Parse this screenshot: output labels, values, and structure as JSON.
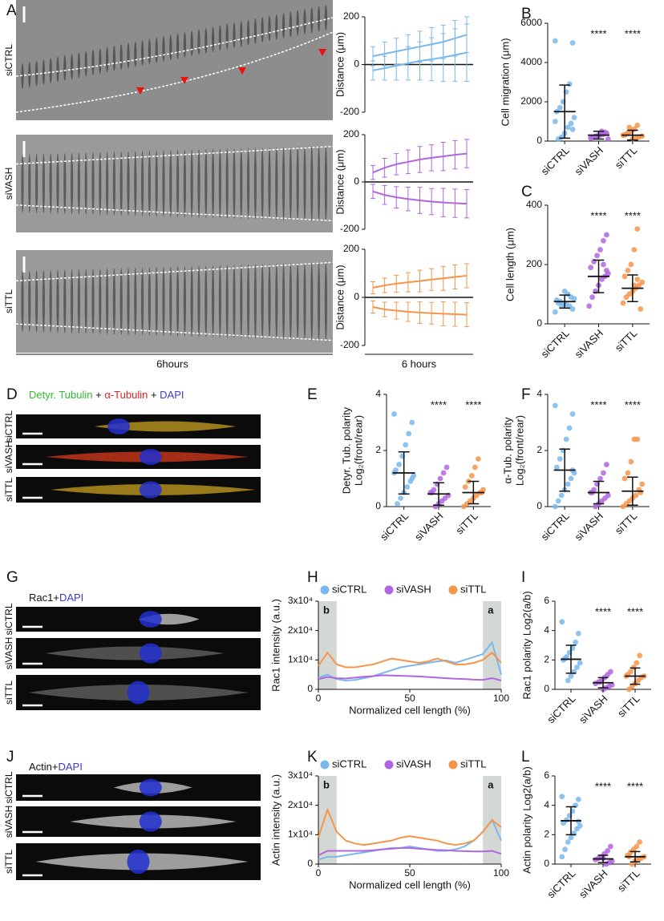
{
  "images": [
    {
      "panel": "A",
      "rows": [
        "siCTRL",
        "siVASH",
        "siTTL"
      ],
      "xlabel": "6hours"
    },
    {
      "panel": "D",
      "legend": [
        "Detyr. Tubulin",
        " + ",
        "α-Tubulin",
        " + ",
        "DAPI"
      ],
      "legend_colors": [
        "#2bbf2b",
        "#111111",
        "#e02020",
        "#111111",
        "#3a3ad0"
      ],
      "rows": [
        "siCTRL",
        "siVASH",
        "siTTL"
      ]
    },
    {
      "panel": "G",
      "legend": [
        "Rac1",
        "+",
        "DAPI"
      ],
      "legend_colors": [
        "#111111",
        "#111111",
        "#3a3ad0"
      ],
      "rows": [
        "siCTRL",
        "siVASH",
        "siTTL"
      ]
    },
    {
      "panel": "J",
      "legend": [
        "Actin",
        "+",
        "DAPI"
      ],
      "legend_colors": [
        "#111111",
        "#111111",
        "#3a3ad0"
      ],
      "rows": [
        "siCTRL",
        "siVASH",
        "siTTL"
      ]
    }
  ],
  "chart_data": [
    {
      "type": "line",
      "ylabel": "Distance (μm)",
      "ylim": [
        -200,
        200
      ],
      "yticks": [
        -200,
        0,
        200
      ],
      "zero_line": true,
      "series": [
        {
          "color": "#7ab8ec",
          "values": [
            35,
            45,
            55,
            65,
            75,
            85,
            95,
            110,
            125
          ],
          "errors": [
            40,
            50,
            55,
            60,
            65,
            70,
            70,
            75,
            75
          ]
        },
        {
          "color": "#7ab8ec",
          "values": [
            -25,
            -15,
            -5,
            5,
            15,
            22,
            30,
            40,
            50
          ],
          "errors": [
            40,
            50,
            60,
            70,
            80,
            90,
            100,
            110,
            120
          ]
        }
      ]
    },
    {
      "type": "line",
      "ylabel": "Distance (μm)",
      "ylim": [
        -200,
        200
      ],
      "yticks": [
        -200,
        0,
        200
      ],
      "zero_line": true,
      "series": [
        {
          "color": "#b066e0",
          "values": [
            40,
            60,
            75,
            85,
            95,
            102,
            108,
            115,
            120
          ],
          "errors": [
            30,
            40,
            45,
            50,
            55,
            55,
            60,
            60,
            60
          ]
        },
        {
          "color": "#b066e0",
          "values": [
            -40,
            -55,
            -65,
            -72,
            -78,
            -83,
            -87,
            -90,
            -92
          ],
          "errors": [
            30,
            40,
            45,
            50,
            55,
            55,
            60,
            60,
            60
          ]
        }
      ]
    },
    {
      "type": "line",
      "ylabel": "Distance (μm)",
      "xlabel": "6 hours",
      "ylim": [
        -200,
        200
      ],
      "yticks": [
        -200,
        0,
        200
      ],
      "zero_line": true,
      "series": [
        {
          "color": "#f5954a",
          "values": [
            40,
            50,
            57,
            63,
            68,
            74,
            79,
            85,
            90
          ],
          "errors": [
            25,
            30,
            35,
            40,
            45,
            45,
            50,
            50,
            50
          ]
        },
        {
          "color": "#f5954a",
          "values": [
            -40,
            -50,
            -55,
            -60,
            -63,
            -66,
            -68,
            -70,
            -72
          ],
          "errors": [
            25,
            30,
            35,
            40,
            45,
            45,
            50,
            50,
            50
          ]
        }
      ]
    },
    {
      "type": "dot",
      "panel": "B",
      "ylabel": "Cell migration (μm)",
      "categories": [
        "siCTRL",
        "siVASH",
        "siTTL"
      ],
      "colors": [
        "#7ab8ec",
        "#b066e0",
        "#f5954a"
      ],
      "ylim": [
        0,
        6000
      ],
      "yticks": [
        0,
        2000,
        4000,
        6000
      ],
      "annotations": [
        null,
        "****",
        "****"
      ],
      "values": [
        [
          5100,
          5000,
          2900,
          2500,
          2000,
          1700,
          1500,
          1200,
          900,
          700,
          400,
          200,
          100,
          1000,
          600
        ],
        [
          400,
          350,
          300,
          250,
          200,
          150,
          100,
          450,
          500,
          300,
          250,
          200
        ],
        [
          800,
          600,
          500,
          400,
          300,
          250,
          200,
          150,
          100,
          700,
          350,
          300
        ]
      ],
      "means": [
        1500,
        300,
        300
      ],
      "sds": [
        1350,
        200,
        250
      ]
    },
    {
      "type": "dot",
      "panel": "C",
      "ylabel": "Cell length (μm)",
      "categories": [
        "siCTRL",
        "siVASH",
        "siTTL"
      ],
      "colors": [
        "#7ab8ec",
        "#b066e0",
        "#f5954a"
      ],
      "ylim": [
        0,
        400
      ],
      "yticks": [
        0,
        200,
        400
      ],
      "annotations": [
        null,
        "****",
        "****"
      ],
      "values": [
        [
          40,
          50,
          60,
          65,
          70,
          75,
          80,
          85,
          90,
          100,
          110,
          60,
          70
        ],
        [
          300,
          280,
          250,
          230,
          210,
          190,
          170,
          160,
          150,
          130,
          110,
          90,
          60,
          180,
          200
        ],
        [
          320,
          250,
          200,
          180,
          160,
          140,
          130,
          120,
          110,
          100,
          90,
          70,
          50,
          150,
          130
        ]
      ],
      "means": [
        75,
        160,
        120
      ],
      "sds": [
        22,
        55,
        45
      ]
    },
    {
      "type": "dot",
      "panel": "E",
      "ylabel": [
        "Detyr. Tub. polarity",
        "Log₂(front/rear)"
      ],
      "categories": [
        "siCTRL",
        "siVASH",
        "siTTL"
      ],
      "colors": [
        "#7ab8ec",
        "#b066e0",
        "#f5954a"
      ],
      "ylim": [
        0,
        4
      ],
      "yticks": [
        0,
        2,
        4
      ],
      "annotations": [
        null,
        "****",
        "****"
      ],
      "values": [
        [
          3.3,
          3.0,
          2.6,
          2.2,
          1.8,
          1.5,
          1.3,
          1.1,
          0.9,
          0.7,
          0.5,
          0.3,
          0.1,
          1.2,
          1.0
        ],
        [
          1.4,
          1.2,
          1.0,
          0.8,
          0.6,
          0.5,
          0.4,
          0.3,
          0.2,
          0.1,
          0.0,
          0.5
        ],
        [
          1.7,
          1.4,
          1.1,
          0.9,
          0.7,
          0.6,
          0.5,
          0.4,
          0.3,
          0.2,
          0.1,
          0.0,
          0.5
        ]
      ],
      "means": [
        1.2,
        0.45,
        0.5
      ],
      "sds": [
        0.75,
        0.4,
        0.4
      ]
    },
    {
      "type": "dot",
      "panel": "F",
      "ylabel": [
        "α-Tub. polarity",
        "Log₂(front/rear)"
      ],
      "categories": [
        "siCTRL",
        "siVASH",
        "siTTL"
      ],
      "colors": [
        "#7ab8ec",
        "#b066e0",
        "#f5954a"
      ],
      "ylim": [
        0,
        4
      ],
      "yticks": [
        0,
        2,
        4
      ],
      "annotations": [
        null,
        "****",
        "****"
      ],
      "values": [
        [
          3.6,
          3.3,
          2.8,
          2.4,
          2.0,
          1.7,
          1.4,
          1.2,
          1.0,
          0.8,
          0.6,
          0.4,
          0.2,
          0.0,
          1.3
        ],
        [
          1.5,
          1.2,
          1.0,
          0.8,
          0.6,
          0.5,
          0.4,
          0.3,
          0.2,
          0.1,
          0.0,
          0.5
        ],
        [
          2.4,
          2.4,
          1.6,
          1.2,
          1.0,
          0.8,
          0.6,
          0.4,
          0.3,
          0.2,
          0.1,
          0.0,
          0.5
        ]
      ],
      "means": [
        1.3,
        0.5,
        0.55
      ],
      "sds": [
        0.75,
        0.4,
        0.5
      ]
    },
    {
      "type": "line",
      "panel": "H",
      "ylabel": "Rac1 intensity (a.u.)",
      "xlabel": "Normalized cell length (%)",
      "x": [
        0,
        5,
        10,
        15,
        20,
        25,
        30,
        35,
        40,
        45,
        50,
        55,
        60,
        65,
        70,
        75,
        80,
        85,
        90,
        95,
        100
      ],
      "xlim": [
        0,
        100
      ],
      "xticks": [
        0,
        50,
        100
      ],
      "ylim": [
        0,
        30000
      ],
      "yticks": [
        0,
        {
          "value": 10000,
          "label": "1x10⁴"
        },
        {
          "value": 20000,
          "label": "2x10⁴"
        },
        {
          "value": 30000,
          "label": "3x10⁴"
        }
      ],
      "regions": [
        {
          "label": "b",
          "x": [
            0,
            10
          ]
        },
        {
          "label": "a",
          "x": [
            90,
            100
          ]
        }
      ],
      "series": [
        {
          "name": "siCTRL",
          "color": "#7ab8ec",
          "values": [
            4000,
            5000,
            3500,
            3000,
            3200,
            3800,
            4500,
            5500,
            6500,
            7500,
            8000,
            8500,
            9000,
            9500,
            9800,
            9000,
            10000,
            11000,
            12000,
            16000,
            5000
          ]
        },
        {
          "name": "siVASH",
          "color": "#b066e0",
          "values": [
            3500,
            4200,
            3800,
            3700,
            4000,
            4300,
            4500,
            4800,
            4700,
            4600,
            4500,
            4400,
            4200,
            4000,
            3800,
            3600,
            3500,
            3300,
            3200,
            3800,
            3000
          ]
        },
        {
          "name": "siTTL",
          "color": "#f5954a",
          "values": [
            8000,
            12500,
            8500,
            7500,
            7500,
            8000,
            8500,
            9500,
            10500,
            10000,
            9500,
            9000,
            9500,
            10500,
            9500,
            8500,
            8500,
            9000,
            10000,
            12500,
            9000
          ]
        }
      ]
    },
    {
      "type": "dot",
      "panel": "I",
      "ylabel": "Rac1 polarity Log2(a/b)",
      "categories": [
        "siCTRL",
        "siVASH",
        "siTTL"
      ],
      "colors": [
        "#7ab8ec",
        "#b066e0",
        "#f5954a"
      ],
      "ylim": [
        0,
        6
      ],
      "yticks": [
        0,
        2,
        4,
        6
      ],
      "annotations": [
        null,
        "****",
        "****"
      ],
      "values": [
        [
          4.6,
          3.8,
          3.2,
          2.8,
          2.5,
          2.2,
          2.0,
          1.8,
          1.5,
          1.2,
          0.9,
          0.6,
          2.1
        ],
        [
          1.2,
          1.0,
          0.8,
          0.6,
          0.5,
          0.4,
          0.3,
          0.2,
          0.1,
          0.0,
          0.5
        ],
        [
          2.3,
          1.8,
          1.5,
          1.2,
          1.0,
          0.9,
          0.8,
          0.6,
          0.4,
          0.2,
          0.0,
          0.9
        ]
      ],
      "means": [
        2.05,
        0.45,
        0.9
      ],
      "sds": [
        0.95,
        0.35,
        0.55
      ]
    },
    {
      "type": "line",
      "panel": "K",
      "ylabel": "Actin intensity (a.u.)",
      "xlabel": "Normalized cell length (%)",
      "x": [
        0,
        5,
        10,
        15,
        20,
        25,
        30,
        35,
        40,
        45,
        50,
        55,
        60,
        65,
        70,
        75,
        80,
        85,
        90,
        95,
        100
      ],
      "xlim": [
        0,
        100
      ],
      "xticks": [
        0,
        50,
        100
      ],
      "ylim": [
        0,
        30000
      ],
      "yticks": [
        0,
        {
          "value": 10000,
          "label": "1x10⁴"
        },
        {
          "value": 20000,
          "label": "2x10⁴"
        },
        {
          "value": 30000,
          "label": "3x10⁴"
        }
      ],
      "regions": [
        {
          "label": "b",
          "x": [
            0,
            10
          ]
        },
        {
          "label": "a",
          "x": [
            90,
            100
          ]
        }
      ],
      "series": [
        {
          "name": "siCTRL",
          "color": "#7ab8ec",
          "values": [
            1500,
            2500,
            2500,
            3000,
            3500,
            4000,
            4500,
            5000,
            5500,
            5500,
            6000,
            5500,
            5000,
            4500,
            4500,
            5000,
            6000,
            8000,
            11000,
            15000,
            8000
          ]
        },
        {
          "name": "siVASH",
          "color": "#b066e0",
          "values": [
            3000,
            4500,
            4500,
            4500,
            4500,
            4500,
            4700,
            5000,
            5200,
            5500,
            5500,
            5200,
            5000,
            4800,
            4700,
            4500,
            4400,
            4300,
            4300,
            4500,
            3500
          ]
        },
        {
          "name": "siTTL",
          "color": "#f5954a",
          "values": [
            9000,
            18500,
            11000,
            8000,
            7000,
            6500,
            7000,
            7500,
            8000,
            9000,
            9500,
            9000,
            8500,
            8000,
            7000,
            6500,
            7000,
            8000,
            11000,
            15000,
            12500
          ]
        }
      ]
    },
    {
      "type": "dot",
      "panel": "L",
      "ylabel": "Actin polarity Log2(a/b)",
      "categories": [
        "siCTRL",
        "siVASH",
        "siTTL"
      ],
      "colors": [
        "#7ab8ec",
        "#b066e0",
        "#f5954a"
      ],
      "ylim": [
        0,
        6
      ],
      "yticks": [
        0,
        2,
        4,
        6
      ],
      "annotations": [
        null,
        "****",
        "****"
      ],
      "values": [
        [
          4.6,
          4.4,
          4.0,
          3.6,
          3.3,
          3.0,
          2.8,
          2.6,
          2.4,
          2.1,
          1.8,
          1.5,
          1.0,
          0.5,
          2.9
        ],
        [
          1.2,
          0.9,
          0.7,
          0.5,
          0.4,
          0.3,
          0.2,
          0.1,
          0.0,
          0.4
        ],
        [
          1.5,
          1.2,
          1.0,
          0.8,
          0.6,
          0.5,
          0.4,
          0.3,
          0.2,
          0.0,
          0.5
        ]
      ],
      "means": [
        2.95,
        0.35,
        0.5
      ],
      "sds": [
        0.95,
        0.25,
        0.35
      ]
    }
  ]
}
